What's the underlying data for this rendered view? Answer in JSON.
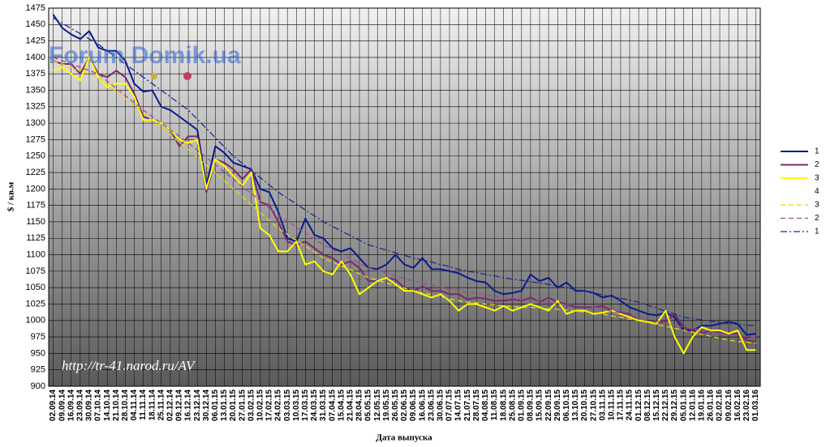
{
  "chart_data": {
    "type": "line",
    "xlabel": "Дата выпуска",
    "ylabel": "$ / кв.м",
    "annotations": [
      "Forum Domik.ua",
      "http://tr-41.narod.ru/AV"
    ],
    "categories": [
      "02.09.14",
      "09.09.14",
      "16.09.14",
      "23.09.14",
      "30.09.14",
      "07.10.14",
      "14.10.14",
      "21.10.14",
      "28.10.14",
      "04.11.14",
      "11.11.14",
      "18.11.14",
      "25.11.14",
      "02.12.14",
      "09.12.14",
      "16.12.14",
      "23.12.14",
      "30.12.14",
      "06.01.15",
      "13.01.15",
      "20.01.15",
      "27.01.15",
      "03.02.15",
      "10.02.15",
      "17.02.15",
      "24.02.15",
      "03.03.15",
      "10.03.15",
      "17.03.15",
      "24.03.15",
      "31.03.15",
      "07.04.15",
      "15.04.15",
      "21.04.15",
      "28.04.15",
      "05.05.15",
      "12.05.15",
      "19.05.15",
      "26.05.15",
      "02.06.15",
      "09.06.15",
      "16.06.15",
      "23.06.15",
      "30.06.15",
      "07.07.15",
      "14.07.15",
      "21.07.15",
      "28.07.15",
      "04.08.15",
      "11.08.15",
      "18.08.15",
      "25.08.15",
      "01.09.15",
      "08.09.15",
      "15.09.15",
      "22.09.15",
      "29.09.15",
      "06.10.15",
      "13.10.15",
      "20.10.15",
      "27.10.15",
      "03.11.15",
      "10.11.15",
      "17.11.15",
      "24.11.15",
      "01.12.15",
      "08.12.15",
      "15.12.15",
      "22.12.15",
      "29.12.15",
      "05.01.16",
      "12.01.16",
      "19.01.16",
      "26.01.16",
      "02.02.16",
      "09.02.16",
      "16.02.16",
      "23.02.16",
      "01.03.16"
    ],
    "series": [
      {
        "name": "1",
        "color": "#0b1a8c",
        "dash": "solid",
        "values": [
          1465,
          1445,
          1435,
          1428,
          1440,
          1415,
          1410,
          1410,
          1395,
          1360,
          1348,
          1350,
          1325,
          1320,
          1310,
          1300,
          1290,
          1205,
          1265,
          1255,
          1240,
          1235,
          1230,
          1200,
          1195,
          1165,
          1125,
          1120,
          1155,
          1130,
          1125,
          1110,
          1105,
          1110,
          1095,
          1080,
          1078,
          1085,
          1100,
          1085,
          1080,
          1095,
          1078,
          1078,
          1075,
          1072,
          1065,
          1060,
          1058,
          1045,
          1040,
          1042,
          1045,
          1070,
          1060,
          1065,
          1050,
          1058,
          1045,
          1045,
          1042,
          1035,
          1038,
          1030,
          1020,
          1015,
          1010,
          1008,
          1012,
          1005,
          985,
          985,
          992,
          992,
          995,
          998,
          995,
          978,
          980
        ]
      },
      {
        "name": "2",
        "color": "#7a2a6c",
        "dash": "solid",
        "values": [
          1395,
          1390,
          1390,
          1375,
          1400,
          1375,
          1370,
          1380,
          1370,
          1345,
          1310,
          1305,
          1300,
          1290,
          1265,
          1280,
          1280,
          1195,
          1245,
          1240,
          1230,
          1215,
          1230,
          1180,
          1175,
          1150,
          1120,
          1115,
          1120,
          1110,
          1100,
          1095,
          1085,
          1090,
          1080,
          1060,
          1060,
          1065,
          1062,
          1050,
          1045,
          1052,
          1045,
          1045,
          1040,
          1040,
          1032,
          1035,
          1033,
          1030,
          1030,
          1032,
          1030,
          1035,
          1028,
          1035,
          1028,
          1025,
          1020,
          1020,
          1020,
          1022,
          1015,
          1012,
          1010,
          1000,
          998,
          997,
          998,
          1010,
          990,
          985,
          980,
          985,
          982,
          980,
          980,
          970,
          968
        ]
      },
      {
        "name": "3",
        "color": "#ffff00",
        "dash": "solid",
        "values": [
          1380,
          1385,
          1375,
          1365,
          1400,
          1370,
          1355,
          1360,
          1360,
          1340,
          1305,
          1305,
          1300,
          1290,
          1275,
          1270,
          1275,
          1200,
          1245,
          1235,
          1220,
          1205,
          1225,
          1140,
          1130,
          1105,
          1105,
          1120,
          1085,
          1090,
          1075,
          1070,
          1090,
          1070,
          1040,
          1050,
          1060,
          1065,
          1055,
          1045,
          1045,
          1040,
          1035,
          1040,
          1030,
          1015,
          1025,
          1025,
          1020,
          1015,
          1022,
          1015,
          1020,
          1025,
          1020,
          1015,
          1030,
          1010,
          1015,
          1015,
          1010,
          1012,
          1015,
          1010,
          1005,
          1000,
          998,
          995,
          1015,
          975,
          950,
          975,
          990,
          985,
          985,
          980,
          985,
          955,
          955
        ]
      },
      {
        "name": "4",
        "color": null,
        "dash": "solid",
        "values": [
          null,
          null,
          null,
          null,
          null,
          null,
          null,
          null,
          null,
          null,
          null,
          null,
          null,
          null,
          null,
          null,
          null,
          null,
          null,
          null,
          null,
          null,
          null,
          null,
          null,
          null,
          null,
          null,
          null,
          null,
          null,
          null,
          null,
          null,
          null,
          null,
          null,
          null,
          null,
          null,
          null,
          null,
          null,
          null,
          null,
          null,
          null,
          null,
          null,
          null,
          null,
          null,
          null,
          null,
          null,
          null,
          null,
          null,
          null,
          null,
          null,
          null,
          null,
          null,
          null,
          null,
          null,
          null,
          null,
          null,
          null,
          null,
          null,
          null,
          null,
          null,
          null,
          null,
          null
        ]
      },
      {
        "name": "3",
        "color": "#e8dc00",
        "dash": "dash",
        "values": [
          1395,
          1390,
          1385,
          1380,
          1375,
          1370,
          1359,
          1348,
          1337,
          1326,
          1315,
          1304,
          1293,
          1282,
          1271,
          1260,
          1248,
          1236,
          1224,
          1212,
          1200,
          1188,
          1176,
          1164,
          1152,
          1140,
          1131,
          1122,
          1113,
          1104,
          1095,
          1089,
          1083,
          1077,
          1071,
          1065,
          1061,
          1057,
          1053,
          1049,
          1045,
          1042,
          1039,
          1036,
          1033,
          1030,
          1028,
          1027,
          1025,
          1024,
          1022,
          1021,
          1020,
          1020,
          1019,
          1018,
          1017,
          1016,
          1014,
          1013,
          1012,
          1010,
          1007,
          1005,
          1002,
          1000,
          997,
          994,
          991,
          988,
          985,
          982,
          979,
          976,
          973,
          970,
          968,
          967,
          965
        ]
      },
      {
        "name": "2",
        "color": "#a04a8c",
        "dash": "dash",
        "values": [
          1400,
          1395,
          1390,
          1385,
          1380,
          1375,
          1364,
          1353,
          1342,
          1331,
          1320,
          1310,
          1300,
          1290,
          1280,
          1270,
          1259,
          1248,
          1237,
          1226,
          1215,
          1204,
          1193,
          1182,
          1171,
          1160,
          1151,
          1142,
          1133,
          1124,
          1115,
          1108,
          1101,
          1094,
          1087,
          1080,
          1076,
          1072,
          1068,
          1064,
          1060,
          1057,
          1054,
          1051,
          1048,
          1045,
          1043,
          1041,
          1039,
          1037,
          1035,
          1034,
          1032,
          1031,
          1029,
          1028,
          1026,
          1025,
          1023,
          1022,
          1020,
          1017,
          1014,
          1011,
          1008,
          1005,
          1002,
          999,
          996,
          993,
          990,
          988,
          985,
          983,
          980,
          978,
          977,
          976,
          975
        ]
      },
      {
        "name": "1",
        "color": "#1a2a8c",
        "dash": "dashdot",
        "values": [
          1460,
          1452,
          1444,
          1436,
          1428,
          1420,
          1410,
          1400,
          1390,
          1380,
          1370,
          1360,
          1350,
          1340,
          1330,
          1320,
          1306,
          1292,
          1278,
          1264,
          1250,
          1239,
          1228,
          1217,
          1206,
          1195,
          1186,
          1177,
          1168,
          1159,
          1150,
          1143,
          1136,
          1129,
          1122,
          1115,
          1111,
          1107,
          1103,
          1099,
          1095,
          1092,
          1089,
          1085,
          1082,
          1078,
          1075,
          1073,
          1070,
          1068,
          1065,
          1063,
          1061,
          1059,
          1057,
          1055,
          1052,
          1050,
          1047,
          1045,
          1042,
          1039,
          1036,
          1034,
          1031,
          1028,
          1023,
          1019,
          1014,
          1010,
          1005,
          1003,
          1001,
          999,
          997,
          995,
          994,
          993,
          992
        ]
      }
    ],
    "ylim": [
      900,
      1475
    ],
    "yticks": [
      900,
      925,
      950,
      975,
      1000,
      1025,
      1050,
      1075,
      1100,
      1125,
      1150,
      1175,
      1200,
      1225,
      1250,
      1275,
      1300,
      1325,
      1350,
      1375,
      1400,
      1425,
      1450,
      1475
    ],
    "grid": true
  }
}
